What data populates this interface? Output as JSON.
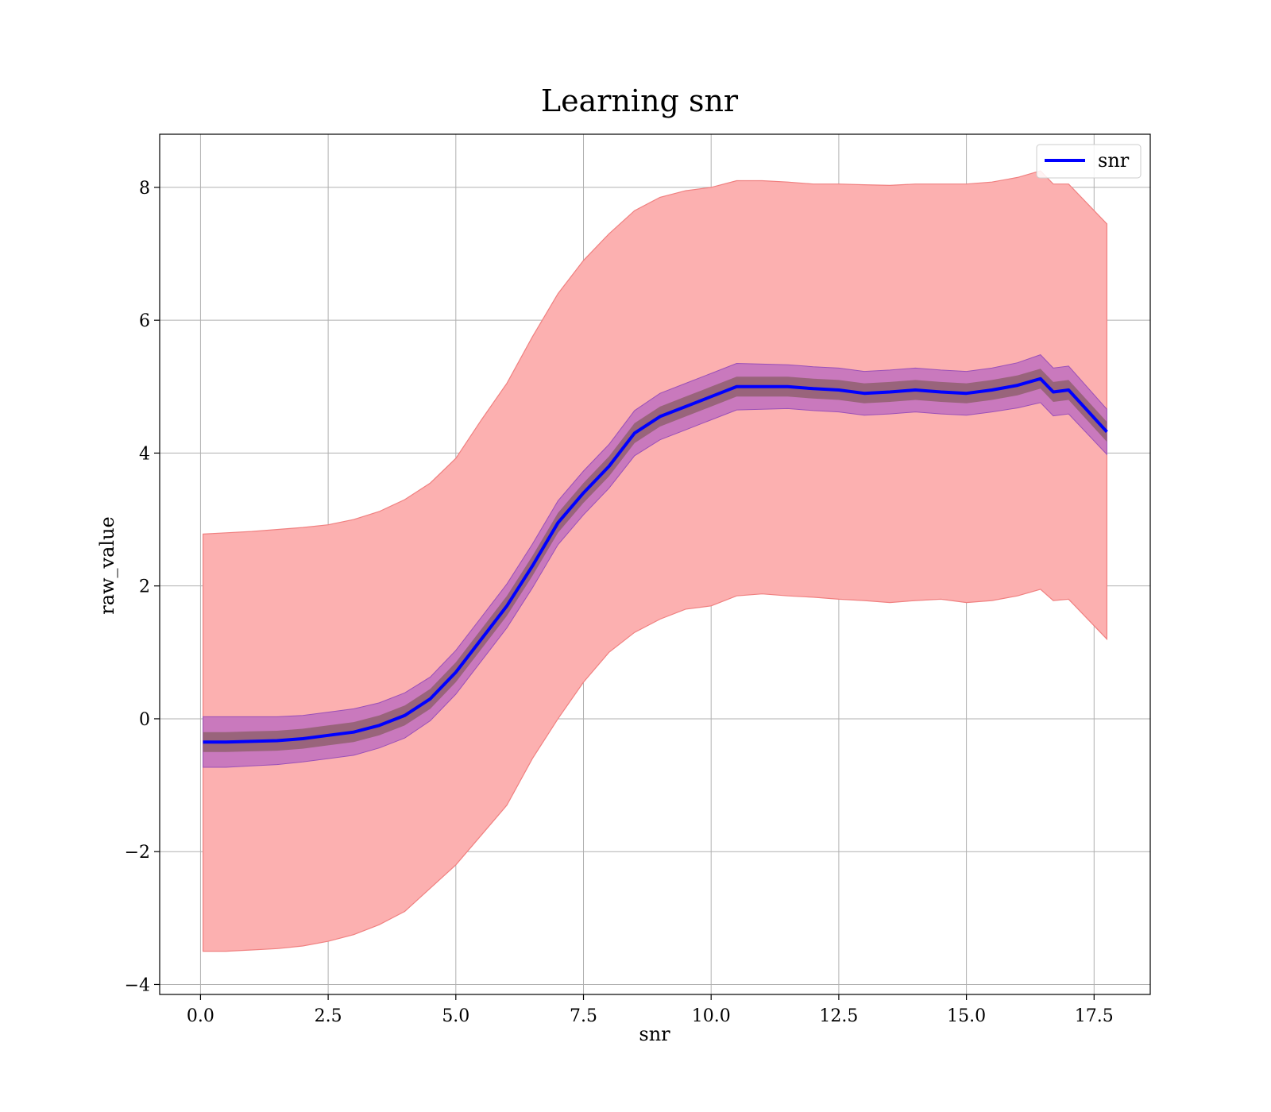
{
  "chart_data": {
    "type": "line",
    "title": "Learning snr",
    "xlabel": "snr",
    "ylabel": "raw_value",
    "xlim": [
      -0.8,
      18.6
    ],
    "ylim": [
      -4.15,
      8.8
    ],
    "xticks": [
      0.0,
      2.5,
      5.0,
      7.5,
      10.0,
      12.5,
      15.0,
      17.5
    ],
    "xtick_labels": [
      "0.0",
      "2.5",
      "5.0",
      "7.5",
      "10.0",
      "12.5",
      "15.0",
      "17.5"
    ],
    "yticks": [
      -4,
      -2,
      0,
      2,
      4,
      6,
      8
    ],
    "ytick_labels": [
      "−4",
      "−2",
      "0",
      "2",
      "4",
      "6",
      "8"
    ],
    "grid": true,
    "legend": {
      "position": "top-right",
      "entries": [
        "snr"
      ]
    },
    "colors": {
      "line": "#0000ff",
      "outer_band": "#fcb0b0",
      "outer_band_edge": "#f08080",
      "inner_band": "#c070c0",
      "core_band": "#906070",
      "grid": "#b0b0b0"
    },
    "x": [
      0.05,
      0.5,
      1.0,
      1.5,
      2.0,
      2.5,
      3.0,
      3.5,
      4.0,
      4.5,
      5.0,
      5.5,
      6.0,
      6.5,
      7.0,
      7.5,
      8.0,
      8.5,
      9.0,
      9.5,
      10.0,
      10.5,
      11.0,
      11.5,
      12.0,
      12.5,
      13.0,
      13.5,
      14.0,
      14.5,
      15.0,
      15.5,
      16.0,
      16.45,
      16.7,
      17.0,
      17.75
    ],
    "series": [
      {
        "name": "snr",
        "mean": [
          -0.35,
          -0.35,
          -0.34,
          -0.33,
          -0.3,
          -0.25,
          -0.2,
          -0.1,
          0.05,
          0.3,
          0.7,
          1.2,
          1.7,
          2.3,
          2.95,
          3.4,
          3.8,
          4.3,
          4.55,
          4.7,
          4.85,
          5.0,
          5.0,
          5.0,
          4.97,
          4.95,
          4.9,
          4.92,
          4.95,
          4.92,
          4.9,
          4.95,
          5.02,
          5.12,
          4.92,
          4.95,
          4.32
        ],
        "outer_upper": [
          2.78,
          2.8,
          2.82,
          2.85,
          2.88,
          2.92,
          3.0,
          3.12,
          3.3,
          3.55,
          3.92,
          4.5,
          5.05,
          5.75,
          6.4,
          6.9,
          7.3,
          7.65,
          7.85,
          7.95,
          8.0,
          8.1,
          8.1,
          8.08,
          8.05,
          8.05,
          8.04,
          8.03,
          8.05,
          8.05,
          8.05,
          8.08,
          8.15,
          8.25,
          8.05,
          8.05,
          7.45
        ],
        "outer_lower": [
          -3.5,
          -3.5,
          -3.48,
          -3.46,
          -3.42,
          -3.35,
          -3.25,
          -3.1,
          -2.9,
          -2.55,
          -2.2,
          -1.75,
          -1.3,
          -0.6,
          0.0,
          0.55,
          1.0,
          1.3,
          1.5,
          1.65,
          1.7,
          1.85,
          1.88,
          1.85,
          1.83,
          1.8,
          1.78,
          1.75,
          1.78,
          1.8,
          1.75,
          1.78,
          1.85,
          1.95,
          1.78,
          1.8,
          1.2
        ],
        "inner_half_width": [
          0.38,
          0.38,
          0.37,
          0.36,
          0.35,
          0.35,
          0.35,
          0.34,
          0.34,
          0.33,
          0.33,
          0.33,
          0.33,
          0.33,
          0.33,
          0.33,
          0.33,
          0.34,
          0.35,
          0.35,
          0.35,
          0.35,
          0.34,
          0.33,
          0.33,
          0.33,
          0.33,
          0.33,
          0.33,
          0.33,
          0.33,
          0.33,
          0.34,
          0.36,
          0.36,
          0.36,
          0.34
        ],
        "core_half_width": [
          0.15,
          0.15,
          0.15,
          0.15,
          0.15,
          0.15,
          0.15,
          0.15,
          0.15,
          0.15,
          0.15,
          0.15,
          0.15,
          0.15,
          0.15,
          0.15,
          0.15,
          0.15,
          0.15,
          0.15,
          0.15,
          0.15,
          0.15,
          0.15,
          0.15,
          0.15,
          0.15,
          0.15,
          0.15,
          0.15,
          0.15,
          0.15,
          0.15,
          0.15,
          0.15,
          0.15,
          0.15
        ]
      }
    ]
  }
}
